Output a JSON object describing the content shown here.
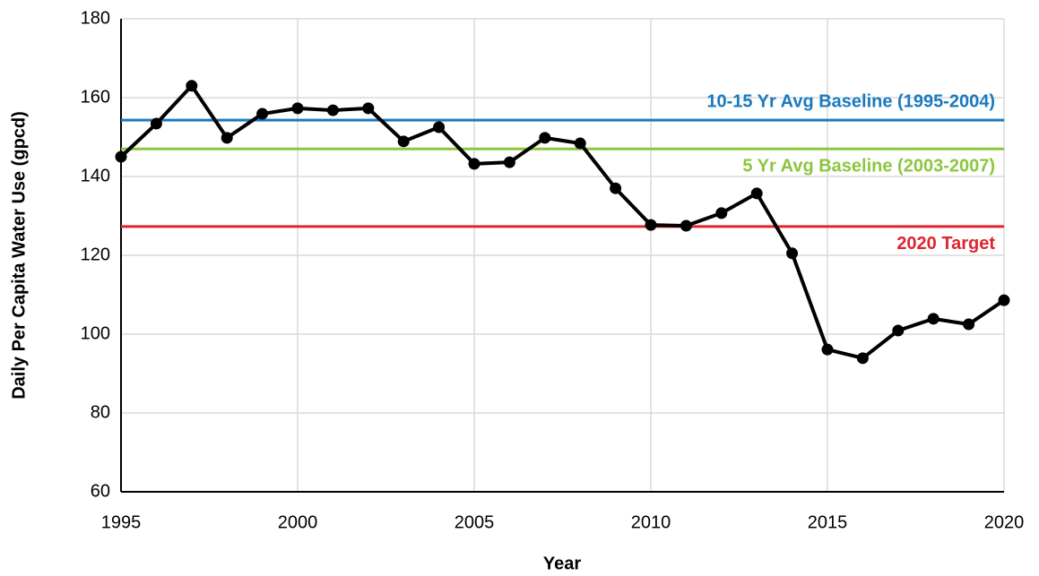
{
  "chart_data": {
    "type": "line",
    "xlabel": "Year",
    "ylabel": "Daily Per Capita Water Use (gpcd)",
    "x": [
      1995,
      1996,
      1997,
      1998,
      1999,
      2000,
      2001,
      2002,
      2003,
      2004,
      2005,
      2006,
      2007,
      2008,
      2009,
      2010,
      2011,
      2012,
      2013,
      2014,
      2015,
      2016,
      2017,
      2018,
      2019,
      2020
    ],
    "series": [
      {
        "color": "#000000",
        "values": [
          145,
          153.4,
          163,
          149.8,
          155.9,
          157.3,
          156.8,
          157.3,
          148.9,
          152.5,
          143.2,
          143.6,
          149.8,
          148.4,
          137,
          127.7,
          127.5,
          130.7,
          135.7,
          120.5,
          96.1,
          93.9,
          100.9,
          103.9,
          102.5,
          108.6
        ]
      }
    ],
    "reference_lines": [
      {
        "label": "10-15 Yr Avg Baseline (1995-2004)",
        "value": 154.3,
        "color": "#1a7abf"
      },
      {
        "label": "5 Yr Avg Baseline (2003-2007)",
        "value": 147,
        "color": "#8cc63f"
      },
      {
        "label": "2020 Target",
        "value": 127.3,
        "color": "#e0242e"
      }
    ],
    "xlim": [
      1995,
      2020
    ],
    "xticks": [
      1995,
      2000,
      2005,
      2010,
      2015,
      2020
    ],
    "ylim": [
      60,
      180
    ],
    "yticks": [
      60,
      80,
      100,
      120,
      140,
      160,
      180
    ],
    "grid": true
  }
}
